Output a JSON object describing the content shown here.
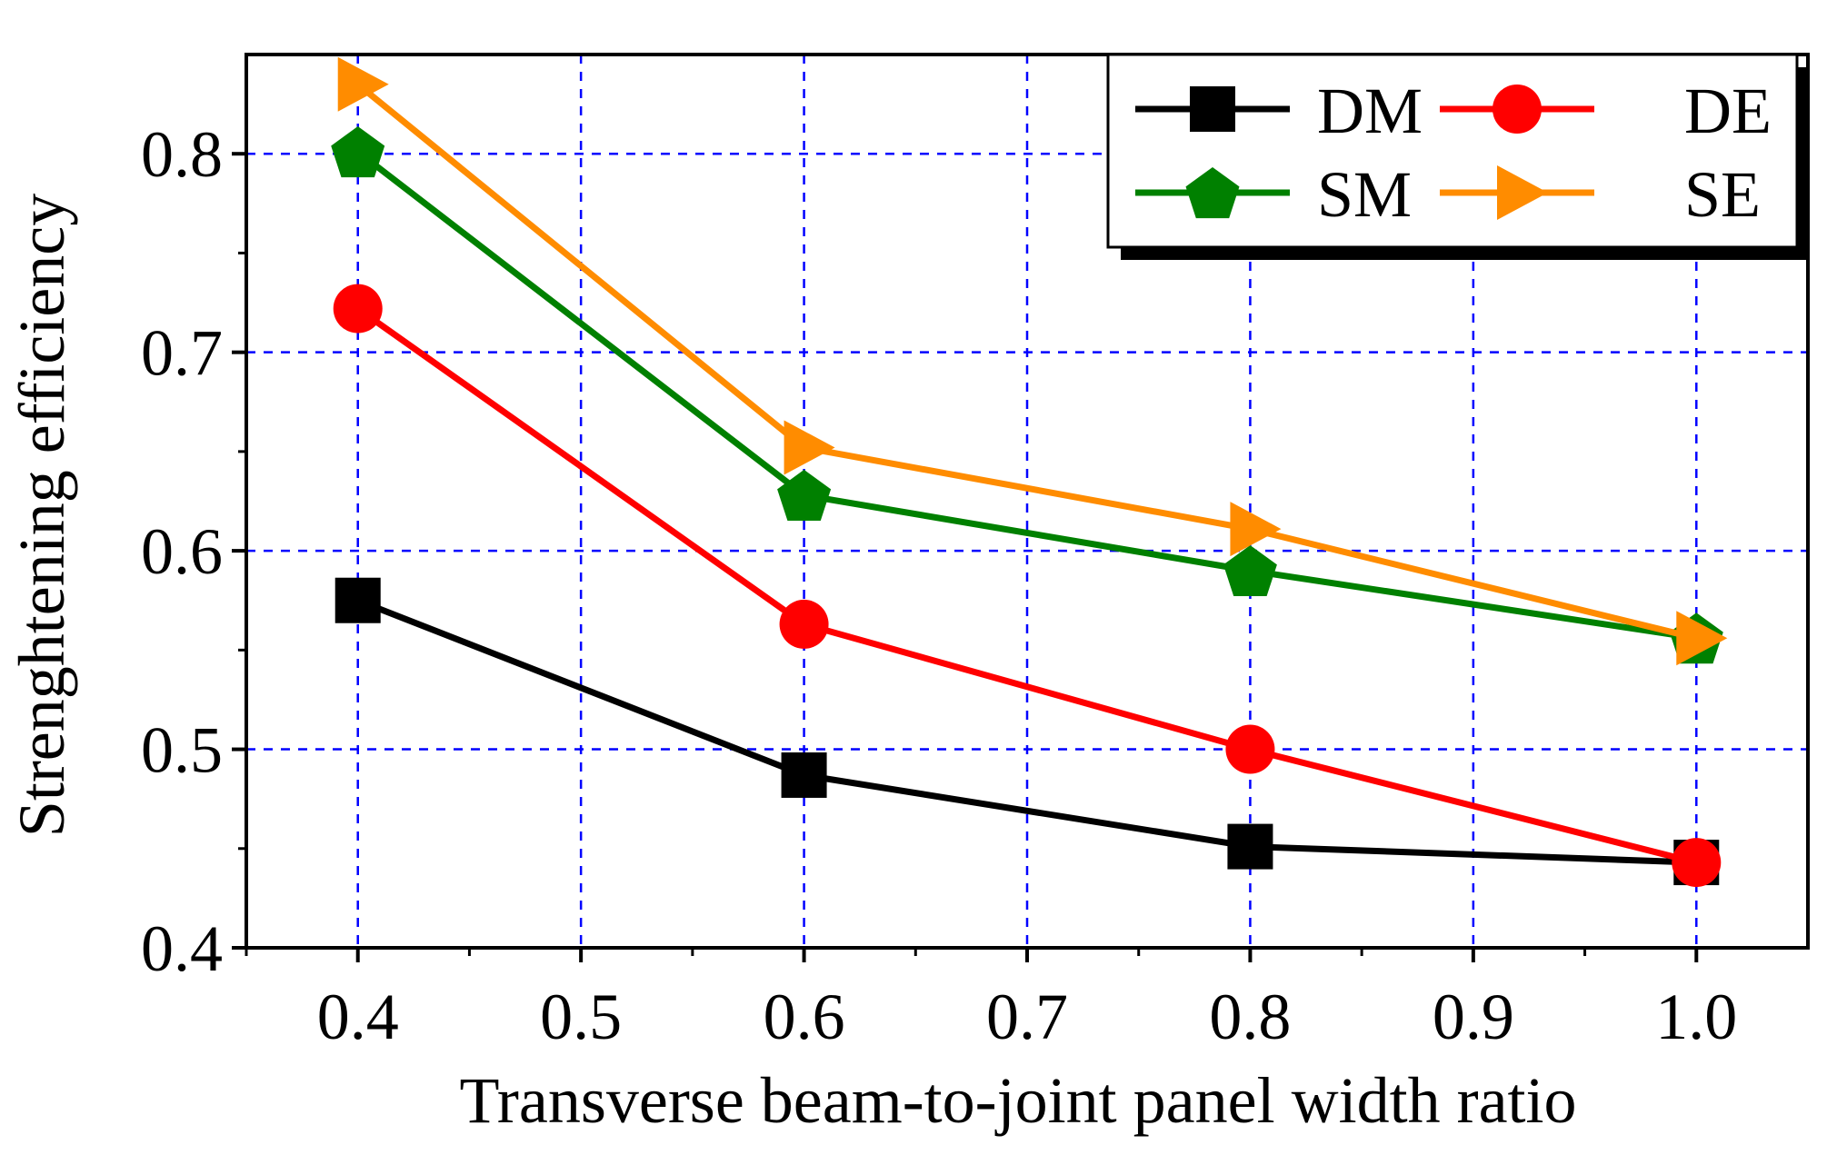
{
  "chart_data": {
    "type": "line",
    "title": "",
    "xlabel": "Transverse beam-to-joint panel width ratio",
    "ylabel": "Strenghtening efficiency",
    "xlim": [
      0.35,
      1.05
    ],
    "ylim": [
      0.4,
      0.85
    ],
    "xticks": [
      "0.4",
      "0.5",
      "0.6",
      "0.7",
      "0.8",
      "0.9",
      "1.0"
    ],
    "yticks": [
      "0.4",
      "0.5",
      "0.6",
      "0.7",
      "0.8"
    ],
    "grid": true,
    "legend_position": "top-right",
    "x": [
      0.4,
      0.6,
      0.8,
      1.0
    ],
    "series": [
      {
        "name": "DM",
        "values": [
          0.575,
          0.487,
          0.451,
          0.443
        ],
        "color": "#000000",
        "marker": "square"
      },
      {
        "name": "DE",
        "values": [
          0.722,
          0.563,
          0.5,
          0.443
        ],
        "color": "#ff0000",
        "marker": "circle"
      },
      {
        "name": "SM",
        "values": [
          0.801,
          0.628,
          0.59,
          0.556
        ],
        "color": "#008000",
        "marker": "pentagon"
      },
      {
        "name": "SE",
        "values": [
          0.835,
          0.652,
          0.611,
          0.556
        ],
        "color": "#ff8c00",
        "marker": "triangle-right"
      }
    ],
    "grid_color": "#0000ff"
  }
}
